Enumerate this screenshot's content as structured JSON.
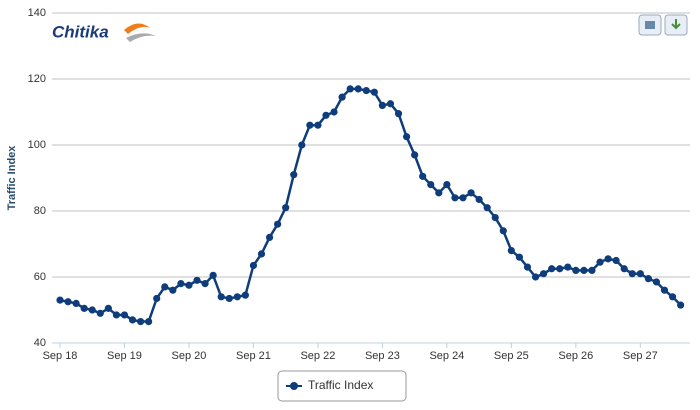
{
  "logo": "Chitika",
  "chart_data": {
    "type": "line",
    "y_label": "Traffic Index",
    "categories": [
      "Sep 18",
      null,
      null,
      null,
      null,
      null,
      null,
      null,
      "Sep 19",
      null,
      null,
      null,
      null,
      null,
      null,
      null,
      "Sep 20",
      null,
      null,
      null,
      null,
      null,
      null,
      null,
      "Sep 21",
      null,
      null,
      null,
      null,
      null,
      null,
      null,
      "Sep 22",
      null,
      null,
      null,
      null,
      null,
      null,
      null,
      "Sep 23",
      null,
      null,
      null,
      null,
      null,
      null,
      null,
      "Sep 24",
      null,
      null,
      null,
      null,
      null,
      null,
      null,
      "Sep 25",
      null,
      null,
      null,
      null,
      null,
      null,
      null,
      "Sep 26",
      null,
      null,
      null,
      null,
      null,
      null,
      null,
      "Sep 27",
      null,
      null,
      null,
      null,
      null
    ],
    "series": [
      {
        "name": "Traffic Index",
        "color": "#0f3d7c",
        "values": [
          53,
          52.5,
          52,
          50.5,
          50,
          49,
          50.5,
          48.5,
          48.5,
          47,
          46.5,
          46.5,
          53.5,
          57,
          56,
          58,
          57.5,
          59,
          58,
          60.5,
          54,
          53.5,
          54,
          54.5,
          63.5,
          67,
          72,
          76,
          81,
          91,
          100,
          106,
          106,
          109,
          110,
          114.5,
          117,
          117,
          116.5,
          116,
          112,
          112.5,
          109.5,
          102.5,
          97,
          90.5,
          88,
          85.5,
          88,
          84,
          84,
          85.5,
          83.5,
          81,
          78,
          74,
          68,
          66,
          63,
          60,
          61,
          62.5,
          62.5,
          63,
          62,
          62,
          62,
          64.5,
          65.5,
          65,
          62.5,
          61,
          61,
          59.5,
          58.5,
          56,
          54,
          51.5
        ]
      }
    ],
    "ylim": [
      40,
      140
    ],
    "yticks": [
      40,
      60,
      80,
      100,
      120,
      140
    ],
    "grid": true
  }
}
